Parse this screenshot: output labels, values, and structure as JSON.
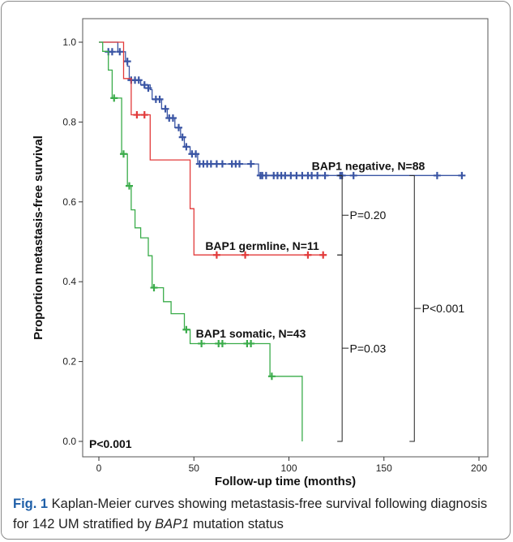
{
  "chart_data": {
    "type": "line",
    "subtype": "kaplan-meier",
    "xlabel": "Follow-up time (months)",
    "ylabel": "Proportion metastasis-free survival",
    "xlim": [
      0,
      200
    ],
    "ylim": [
      0,
      1.0
    ],
    "xticks": [
      "0",
      "50",
      "100",
      "150",
      "200"
    ],
    "yticks": [
      "0.0",
      "0.2",
      "0.4",
      "0.6",
      "0.8",
      "1.0"
    ],
    "grid": false,
    "overall_p": "P<0.001",
    "series": [
      {
        "name": "BAP1 negative, N=88",
        "color": "#3a55a4",
        "steps": [
          [
            0,
            1.0
          ],
          [
            10,
            1.0
          ],
          [
            10,
            0.976
          ],
          [
            14,
            0.976
          ],
          [
            14,
            0.952
          ],
          [
            15,
            0.952
          ],
          [
            15,
            0.94
          ],
          [
            16,
            0.94
          ],
          [
            16,
            0.905
          ],
          [
            22,
            0.905
          ],
          [
            22,
            0.893
          ],
          [
            27,
            0.893
          ],
          [
            27,
            0.881
          ],
          [
            28,
            0.881
          ],
          [
            28,
            0.857
          ],
          [
            33,
            0.857
          ],
          [
            33,
            0.833
          ],
          [
            36,
            0.833
          ],
          [
            36,
            0.81
          ],
          [
            40,
            0.81
          ],
          [
            40,
            0.786
          ],
          [
            43,
            0.786
          ],
          [
            43,
            0.762
          ],
          [
            45,
            0.762
          ],
          [
            45,
            0.738
          ],
          [
            48,
            0.738
          ],
          [
            48,
            0.72
          ],
          [
            52,
            0.72
          ],
          [
            52,
            0.695
          ],
          [
            84,
            0.695
          ],
          [
            84,
            0.666
          ],
          [
            192,
            0.666
          ]
        ],
        "censored": [
          [
            5,
            0.976
          ],
          [
            7,
            0.976
          ],
          [
            11,
            0.976
          ],
          [
            15,
            0.952
          ],
          [
            17,
            0.905
          ],
          [
            19,
            0.905
          ],
          [
            21,
            0.905
          ],
          [
            24,
            0.893
          ],
          [
            26,
            0.885
          ],
          [
            30,
            0.857
          ],
          [
            32,
            0.857
          ],
          [
            35,
            0.833
          ],
          [
            37,
            0.81
          ],
          [
            39,
            0.81
          ],
          [
            42,
            0.786
          ],
          [
            44,
            0.762
          ],
          [
            46,
            0.738
          ],
          [
            49,
            0.72
          ],
          [
            51,
            0.72
          ],
          [
            53,
            0.695
          ],
          [
            55,
            0.695
          ],
          [
            57,
            0.695
          ],
          [
            59,
            0.695
          ],
          [
            62,
            0.695
          ],
          [
            65,
            0.695
          ],
          [
            70,
            0.695
          ],
          [
            72,
            0.695
          ],
          [
            74,
            0.695
          ],
          [
            80,
            0.695
          ],
          [
            85,
            0.666
          ],
          [
            86,
            0.666
          ],
          [
            88,
            0.666
          ],
          [
            92,
            0.666
          ],
          [
            94,
            0.666
          ],
          [
            96,
            0.666
          ],
          [
            98,
            0.666
          ],
          [
            101,
            0.666
          ],
          [
            104,
            0.666
          ],
          [
            107,
            0.666
          ],
          [
            110,
            0.666
          ],
          [
            112,
            0.666
          ],
          [
            115,
            0.666
          ],
          [
            119,
            0.666
          ],
          [
            127,
            0.666
          ],
          [
            128,
            0.666
          ],
          [
            134,
            0.666
          ],
          [
            178,
            0.666
          ],
          [
            191,
            0.666
          ]
        ]
      },
      {
        "name": "BAP1 germline, N=11",
        "color": "#e23a3a",
        "steps": [
          [
            0,
            1.0
          ],
          [
            13,
            1.0
          ],
          [
            13,
            0.909
          ],
          [
            17,
            0.909
          ],
          [
            17,
            0.818
          ],
          [
            27,
            0.818
          ],
          [
            27,
            0.705
          ],
          [
            48,
            0.705
          ],
          [
            48,
            0.583
          ],
          [
            50,
            0.583
          ],
          [
            50,
            0.467
          ],
          [
            118,
            0.467
          ]
        ],
        "censored": [
          [
            20,
            0.818
          ],
          [
            24,
            0.818
          ],
          [
            62,
            0.467
          ],
          [
            77,
            0.467
          ],
          [
            110,
            0.467
          ],
          [
            118,
            0.467
          ]
        ]
      },
      {
        "name": "BAP1 somatic, N=43",
        "color": "#3aac4a",
        "steps": [
          [
            0,
            1.0
          ],
          [
            2,
            1.0
          ],
          [
            2,
            0.977
          ],
          [
            5,
            0.977
          ],
          [
            5,
            0.93
          ],
          [
            7,
            0.93
          ],
          [
            7,
            0.86
          ],
          [
            12,
            0.86
          ],
          [
            12,
            0.72
          ],
          [
            15,
            0.72
          ],
          [
            15,
            0.64
          ],
          [
            17,
            0.64
          ],
          [
            17,
            0.58
          ],
          [
            19,
            0.58
          ],
          [
            19,
            0.535
          ],
          [
            22,
            0.535
          ],
          [
            22,
            0.51
          ],
          [
            26,
            0.51
          ],
          [
            26,
            0.465
          ],
          [
            28,
            0.465
          ],
          [
            28,
            0.385
          ],
          [
            34,
            0.385
          ],
          [
            34,
            0.35
          ],
          [
            38,
            0.35
          ],
          [
            38,
            0.32
          ],
          [
            45,
            0.32
          ],
          [
            45,
            0.28
          ],
          [
            48,
            0.28
          ],
          [
            48,
            0.245
          ],
          [
            90,
            0.245
          ],
          [
            90,
            0.163
          ],
          [
            107,
            0.163
          ],
          [
            107,
            0.0
          ]
        ],
        "censored": [
          [
            8,
            0.86
          ],
          [
            13,
            0.72
          ],
          [
            16,
            0.64
          ],
          [
            29,
            0.385
          ],
          [
            46,
            0.28
          ],
          [
            54,
            0.245
          ],
          [
            63,
            0.245
          ],
          [
            65,
            0.245
          ],
          [
            78,
            0.245
          ],
          [
            80,
            0.245
          ],
          [
            91,
            0.163
          ]
        ]
      }
    ],
    "annotations": [
      {
        "text": "BAP1 negative, N=88",
        "x": 112,
        "y": 0.69
      },
      {
        "text": "BAP1 germline, N=11",
        "x": 56,
        "y": 0.49
      },
      {
        "text": "BAP1 somatic, N=43",
        "x": 51,
        "y": 0.27
      },
      {
        "text": "P=0.20",
        "x": 132,
        "y": 0.567
      },
      {
        "text": "P=0.03",
        "x": 132,
        "y": 0.233
      },
      {
        "text": "P<0.001",
        "x": 170,
        "y": 0.333
      }
    ],
    "comparisons": [
      {
        "label": "P=0.20",
        "y_top": 0.666,
        "y_bottom": 0.467,
        "x": 128
      },
      {
        "label": "P=0.03",
        "y_top": 0.467,
        "y_bottom": 0.0,
        "x": 128
      },
      {
        "label": "P<0.001",
        "y_top": 0.666,
        "y_bottom": 0.0,
        "x": 166
      }
    ]
  },
  "caption": {
    "fig_label": "Fig. 1",
    "text_before": " Kaplan-Meier curves showing metastasis-free survival following diagnosis for 142 UM stratified by ",
    "gene": "BAP1",
    "text_after": " mutation status"
  }
}
